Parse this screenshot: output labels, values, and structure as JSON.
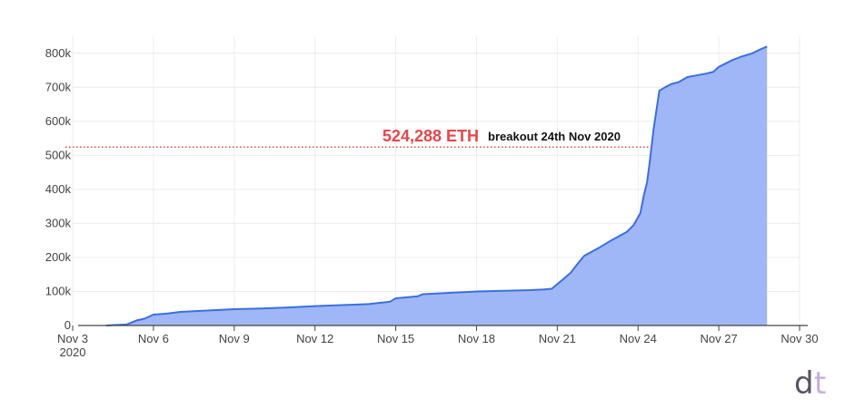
{
  "chart_data": {
    "type": "area",
    "title": "",
    "xlabel": "",
    "ylabel": "",
    "x_start": "2020-11-03",
    "xlim": [
      "2020-11-03",
      "2020-11-30"
    ],
    "ylim": [
      0,
      850000
    ],
    "y_ticks": [
      0,
      100000,
      200000,
      300000,
      400000,
      500000,
      600000,
      700000,
      800000
    ],
    "y_tick_labels": [
      "0",
      "100k",
      "200k",
      "300k",
      "400k",
      "500k",
      "600k",
      "700k",
      "800k"
    ],
    "x_ticks": [
      "2020-11-03",
      "2020-11-06",
      "2020-11-09",
      "2020-11-12",
      "2020-11-15",
      "2020-11-18",
      "2020-11-21",
      "2020-11-24",
      "2020-11-27",
      "2020-11-30"
    ],
    "x_tick_labels": [
      "Nov 3",
      "Nov 6",
      "Nov 9",
      "Nov 12",
      "Nov 15",
      "Nov 18",
      "Nov 21",
      "Nov 24",
      "Nov 27",
      "Nov 30"
    ],
    "x_tick_sublabel": "2020",
    "grid": true,
    "series": [
      {
        "x": [
          "2020-11-04T06:00",
          "2020-11-04T18:00",
          "2020-11-05T00:00",
          "2020-11-05T09:00",
          "2020-11-05T16:00",
          "2020-11-06T00:00",
          "2020-11-06T12:00",
          "2020-11-07T00:00",
          "2020-11-07T12:00",
          "2020-11-08T00:00",
          "2020-11-09T00:00",
          "2020-11-10T00:00",
          "2020-11-11T00:00",
          "2020-11-12T00:00",
          "2020-11-13T00:00",
          "2020-11-14T00:00",
          "2020-11-14T19:00",
          "2020-11-15T00:00",
          "2020-11-15T20:00",
          "2020-11-16T00:00",
          "2020-11-17T00:00",
          "2020-11-18T00:00",
          "2020-11-19T00:00",
          "2020-11-20T00:00",
          "2020-11-20T12:00",
          "2020-11-20T19:00",
          "2020-11-21T05:00",
          "2020-11-21T12:00",
          "2020-11-21T19:00",
          "2020-11-22T00:00",
          "2020-11-22T14:00",
          "2020-11-23T00:00",
          "2020-11-23T14:00",
          "2020-11-23T20:00",
          "2020-11-24T02:00",
          "2020-11-24T05:00",
          "2020-11-24T08:00",
          "2020-11-24T10:00",
          "2020-11-24T12:00",
          "2020-11-24T14:00",
          "2020-11-24T19:00",
          "2020-11-25T00:00",
          "2020-11-25T06:00",
          "2020-11-25T12:00",
          "2020-11-25T20:00",
          "2020-11-26T12:00",
          "2020-11-26T19:00",
          "2020-11-27T00:00",
          "2020-11-27T12:00",
          "2020-11-27T20:00",
          "2020-11-28T06:00",
          "2020-11-28T12:00",
          "2020-11-28T19:00"
        ],
        "values": [
          0,
          2000,
          3000,
          15000,
          20000,
          32000,
          35000,
          40000,
          42000,
          44000,
          48000,
          50000,
          53000,
          57000,
          60000,
          63000,
          70000,
          80000,
          86000,
          92000,
          96000,
          100000,
          102000,
          104000,
          106000,
          108000,
          135000,
          155000,
          185000,
          205000,
          230000,
          250000,
          275000,
          295000,
          330000,
          380000,
          420000,
          470000,
          524288,
          580000,
          690000,
          700000,
          710000,
          715000,
          730000,
          740000,
          745000,
          760000,
          780000,
          790000,
          800000,
          810000,
          820000
        ],
        "color": "#3b6fe0",
        "fill": "#9fb7f7"
      }
    ],
    "annotation": {
      "value_label": "524,288 ETH",
      "text": "breakout 24th Nov 2020",
      "y": 524288,
      "x_end": "2020-11-24T12:00",
      "color": "#e8454a"
    }
  },
  "logo": {
    "glyph_1": "d",
    "glyph_2": "t",
    "color_1": "#5a5260",
    "color_2": "#c9aee0"
  }
}
